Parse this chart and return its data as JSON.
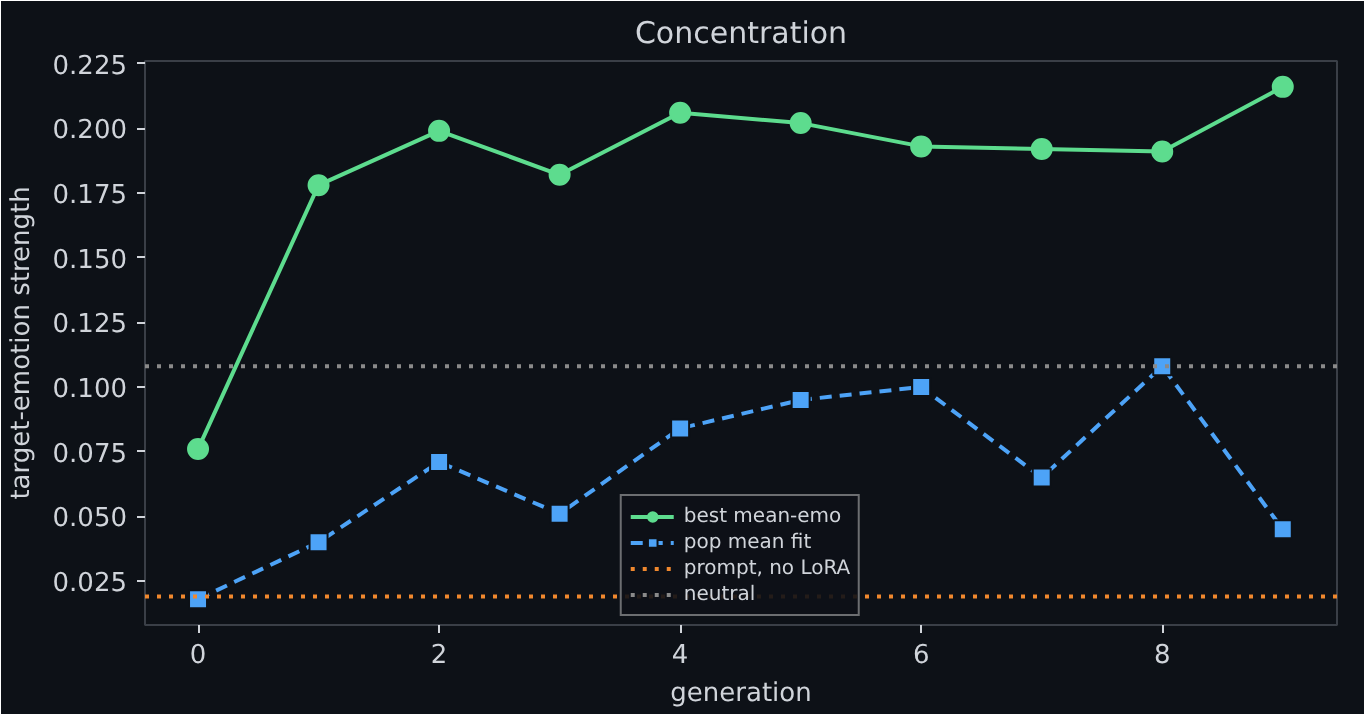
{
  "chart_data": {
    "type": "line",
    "title": "Concentration",
    "xlabel": "generation",
    "ylabel": "target-emotion strength",
    "x": [
      0,
      1,
      2,
      3,
      4,
      5,
      6,
      7,
      8,
      9
    ],
    "series": [
      {
        "name": "best mean-emo",
        "color": "#5ddc8e",
        "marker": "circle",
        "line_style": "solid",
        "values": [
          0.076,
          0.178,
          0.199,
          0.182,
          0.206,
          0.202,
          0.193,
          0.192,
          0.191,
          0.216
        ]
      },
      {
        "name": "pop mean fit",
        "color": "#4da3f7",
        "marker": "square",
        "line_style": "dashed",
        "values": [
          0.018,
          0.04,
          0.071,
          0.051,
          0.084,
          0.095,
          0.1,
          0.065,
          0.108,
          0.045
        ]
      }
    ],
    "ref_lines": [
      {
        "axis": "y",
        "value": 0.019,
        "label": "prompt, no LoRA",
        "color": "#f0882e",
        "line_style": "dotted"
      },
      {
        "axis": "y",
        "value": 0.108,
        "label": "neutral",
        "color": "#8a8a8a",
        "line_style": "dotted"
      }
    ],
    "xlim": [
      -0.44,
      9.45
    ],
    "ylim": [
      0.008,
      0.226
    ],
    "xticks": [
      0,
      2,
      4,
      6,
      8
    ],
    "yticks": [
      {
        "value": 0.025,
        "label": "0.025"
      },
      {
        "value": 0.05,
        "label": "0.050"
      },
      {
        "value": 0.075,
        "label": "0.075"
      },
      {
        "value": 0.1,
        "label": "0.100"
      },
      {
        "value": 0.125,
        "label": "0.125"
      },
      {
        "value": 0.15,
        "label": "0.150"
      },
      {
        "value": 0.175,
        "label": "0.175"
      },
      {
        "value": 0.2,
        "label": "0.200"
      },
      {
        "value": 0.225,
        "label": "0.225"
      }
    ],
    "grid": false,
    "legend": "bottom center"
  }
}
